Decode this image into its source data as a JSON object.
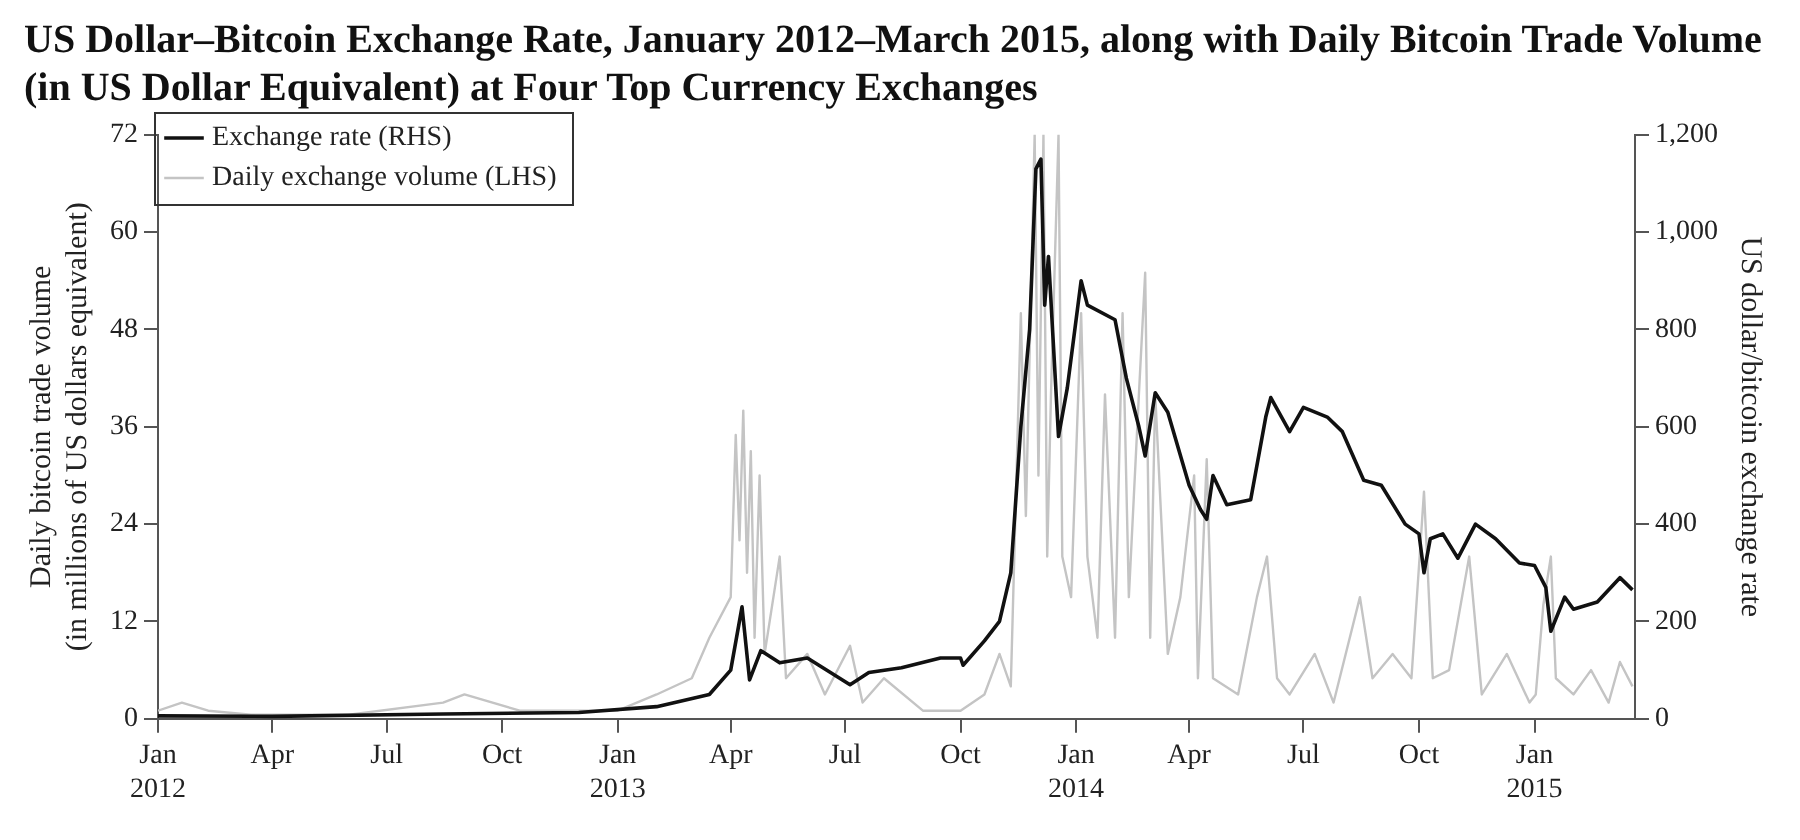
{
  "chart_data": {
    "type": "line",
    "title": "US Dollar–Bitcoin Exchange Rate, January 2012–March 2015, along with Daily Bitcoin Trade Volume (in US Dollar Equivalent) at Four Top Currency Exchanges",
    "ylabel": "Daily bitcoin trade volume\n(in millions of US dollars equivalent)",
    "y2label": "US dollar/bitcoin exchange rate",
    "legend": "top left",
    "grid": false,
    "marker": "none",
    "line_style": "solid",
    "xlim": [
      "2012-01-01",
      "2015-03-22"
    ],
    "xticks": [
      {
        "value": "2012-01-01",
        "label": "Jan\n2012"
      },
      {
        "value": "2012-04-01",
        "label": "Apr"
      },
      {
        "value": "2012-07-01",
        "label": "Jul"
      },
      {
        "value": "2012-10-01",
        "label": "Oct"
      },
      {
        "value": "2013-01-01",
        "label": "Jan\n2013"
      },
      {
        "value": "2013-04-01",
        "label": "Apr"
      },
      {
        "value": "2013-07-01",
        "label": "Jul"
      },
      {
        "value": "2013-10-01",
        "label": "Oct"
      },
      {
        "value": "2014-01-01",
        "label": "Jan\n2014"
      },
      {
        "value": "2014-04-01",
        "label": "Apr"
      },
      {
        "value": "2014-07-01",
        "label": "Jul"
      },
      {
        "value": "2014-10-01",
        "label": "Oct"
      },
      {
        "value": "2015-01-01",
        "label": "Jan\n2015"
      }
    ],
    "ylim": [
      0,
      72
    ],
    "yticks": [
      0,
      12,
      24,
      36,
      48,
      60,
      72
    ],
    "y2lim": [
      0,
      1200
    ],
    "y2ticks": [
      0,
      {
        "value": 200,
        "label": "200"
      },
      {
        "value": 400,
        "label": "400"
      },
      {
        "value": 600,
        "label": "600"
      },
      {
        "value": 800,
        "label": "800"
      },
      {
        "value": 1000,
        "label": "1,000"
      },
      {
        "value": 1200,
        "label": "1,200"
      }
    ],
    "series": [
      {
        "name": "Exchange rate (RHS)",
        "color": "#111111",
        "axis": "y2",
        "x": [
          "2012-01-01",
          "2012-04-01",
          "2012-08-15",
          "2012-12-01",
          "2013-02-01",
          "2013-03-15",
          "2013-04-01",
          "2013-04-10",
          "2013-04-16",
          "2013-04-25",
          "2013-05-10",
          "2013-06-01",
          "2013-07-05",
          "2013-07-20",
          "2013-08-15",
          "2013-09-15",
          "2013-10-01",
          "2013-10-03",
          "2013-10-20",
          "2013-11-01",
          "2013-11-10",
          "2013-11-18",
          "2013-11-25",
          "2013-11-30",
          "2013-12-04",
          "2013-12-07",
          "2013-12-10",
          "2013-12-18",
          "2013-12-25",
          "2014-01-05",
          "2014-01-10",
          "2014-02-01",
          "2014-02-10",
          "2014-02-20",
          "2014-02-25",
          "2014-03-05",
          "2014-03-15",
          "2014-04-01",
          "2014-04-10",
          "2014-04-15",
          "2014-04-20",
          "2014-05-01",
          "2014-05-20",
          "2014-06-01",
          "2014-06-05",
          "2014-06-20",
          "2014-07-01",
          "2014-07-20",
          "2014-08-01",
          "2014-08-18",
          "2014-09-01",
          "2014-09-20",
          "2014-10-01",
          "2014-10-05",
          "2014-10-10",
          "2014-10-20",
          "2014-11-01",
          "2014-11-15",
          "2014-12-01",
          "2014-12-20",
          "2015-01-01",
          "2015-01-10",
          "2015-01-14",
          "2015-01-25",
          "2015-02-01",
          "2015-02-20",
          "2015-03-10",
          "2015-03-20"
        ],
        "values": [
          6,
          5,
          10,
          13,
          25,
          50,
          100,
          230,
          80,
          140,
          115,
          125,
          70,
          95,
          105,
          125,
          125,
          110,
          160,
          200,
          300,
          600,
          800,
          1130,
          1150,
          850,
          950,
          580,
          680,
          900,
          850,
          820,
          700,
          600,
          540,
          670,
          630,
          480,
          430,
          410,
          500,
          440,
          450,
          620,
          660,
          590,
          640,
          620,
          590,
          490,
          480,
          400,
          380,
          300,
          370,
          380,
          330,
          400,
          370,
          320,
          315,
          270,
          180,
          250,
          225,
          240,
          290,
          265
        ]
      },
      {
        "name": "Daily exchange volume (LHS)",
        "color": "#c4c4c4",
        "x": [
          "2012-01-01",
          "2012-01-20",
          "2012-02-10",
          "2012-03-15",
          "2012-06-01",
          "2012-08-15",
          "2012-09-01",
          "2012-10-15",
          "2013-01-01",
          "2013-02-01",
          "2013-03-01",
          "2013-03-15",
          "2013-04-01",
          "2013-04-05",
          "2013-04-08",
          "2013-04-11",
          "2013-04-14",
          "2013-04-17",
          "2013-04-20",
          "2013-04-24",
          "2013-04-28",
          "2013-05-10",
          "2013-05-15",
          "2013-06-01",
          "2013-06-15",
          "2013-07-05",
          "2013-07-15",
          "2013-08-01",
          "2013-09-01",
          "2013-10-01",
          "2013-10-20",
          "2013-11-01",
          "2013-11-10",
          "2013-11-18",
          "2013-11-22",
          "2013-11-29",
          "2013-12-02",
          "2013-12-06",
          "2013-12-09",
          "2013-12-12",
          "2013-12-18",
          "2013-12-21",
          "2013-12-28",
          "2014-01-05",
          "2014-01-10",
          "2014-01-18",
          "2014-01-24",
          "2014-02-01",
          "2014-02-07",
          "2014-02-12",
          "2014-02-20",
          "2014-02-25",
          "2014-03-01",
          "2014-03-05",
          "2014-03-15",
          "2014-03-25",
          "2014-04-05",
          "2014-04-08",
          "2014-04-15",
          "2014-04-20",
          "2014-05-10",
          "2014-05-25",
          "2014-06-02",
          "2014-06-10",
          "2014-06-20",
          "2014-07-10",
          "2014-07-25",
          "2014-08-15",
          "2014-08-25",
          "2014-09-10",
          "2014-09-25",
          "2014-10-05",
          "2014-10-12",
          "2014-10-25",
          "2014-11-10",
          "2014-11-20",
          "2014-12-10",
          "2014-12-28",
          "2015-01-02",
          "2015-01-08",
          "2015-01-14",
          "2015-01-18",
          "2015-02-01",
          "2015-02-15",
          "2015-03-01",
          "2015-03-10",
          "2015-03-20"
        ],
        "values": [
          1,
          2,
          1,
          0.5,
          0.5,
          2,
          3,
          1,
          1,
          3,
          5,
          10,
          15,
          35,
          22,
          38,
          18,
          33,
          10,
          30,
          8,
          20,
          5,
          8,
          3,
          9,
          2,
          5,
          1,
          1,
          3,
          8,
          4,
          50,
          25,
          72,
          30,
          72,
          20,
          40,
          72,
          20,
          15,
          50,
          20,
          10,
          40,
          10,
          50,
          15,
          40,
          55,
          10,
          40,
          8,
          15,
          30,
          5,
          32,
          5,
          3,
          15,
          20,
          5,
          3,
          8,
          2,
          15,
          5,
          8,
          5,
          28,
          5,
          6,
          20,
          3,
          8,
          2,
          3,
          14,
          20,
          5,
          3,
          6,
          2,
          7,
          4
        ]
      }
    ]
  }
}
